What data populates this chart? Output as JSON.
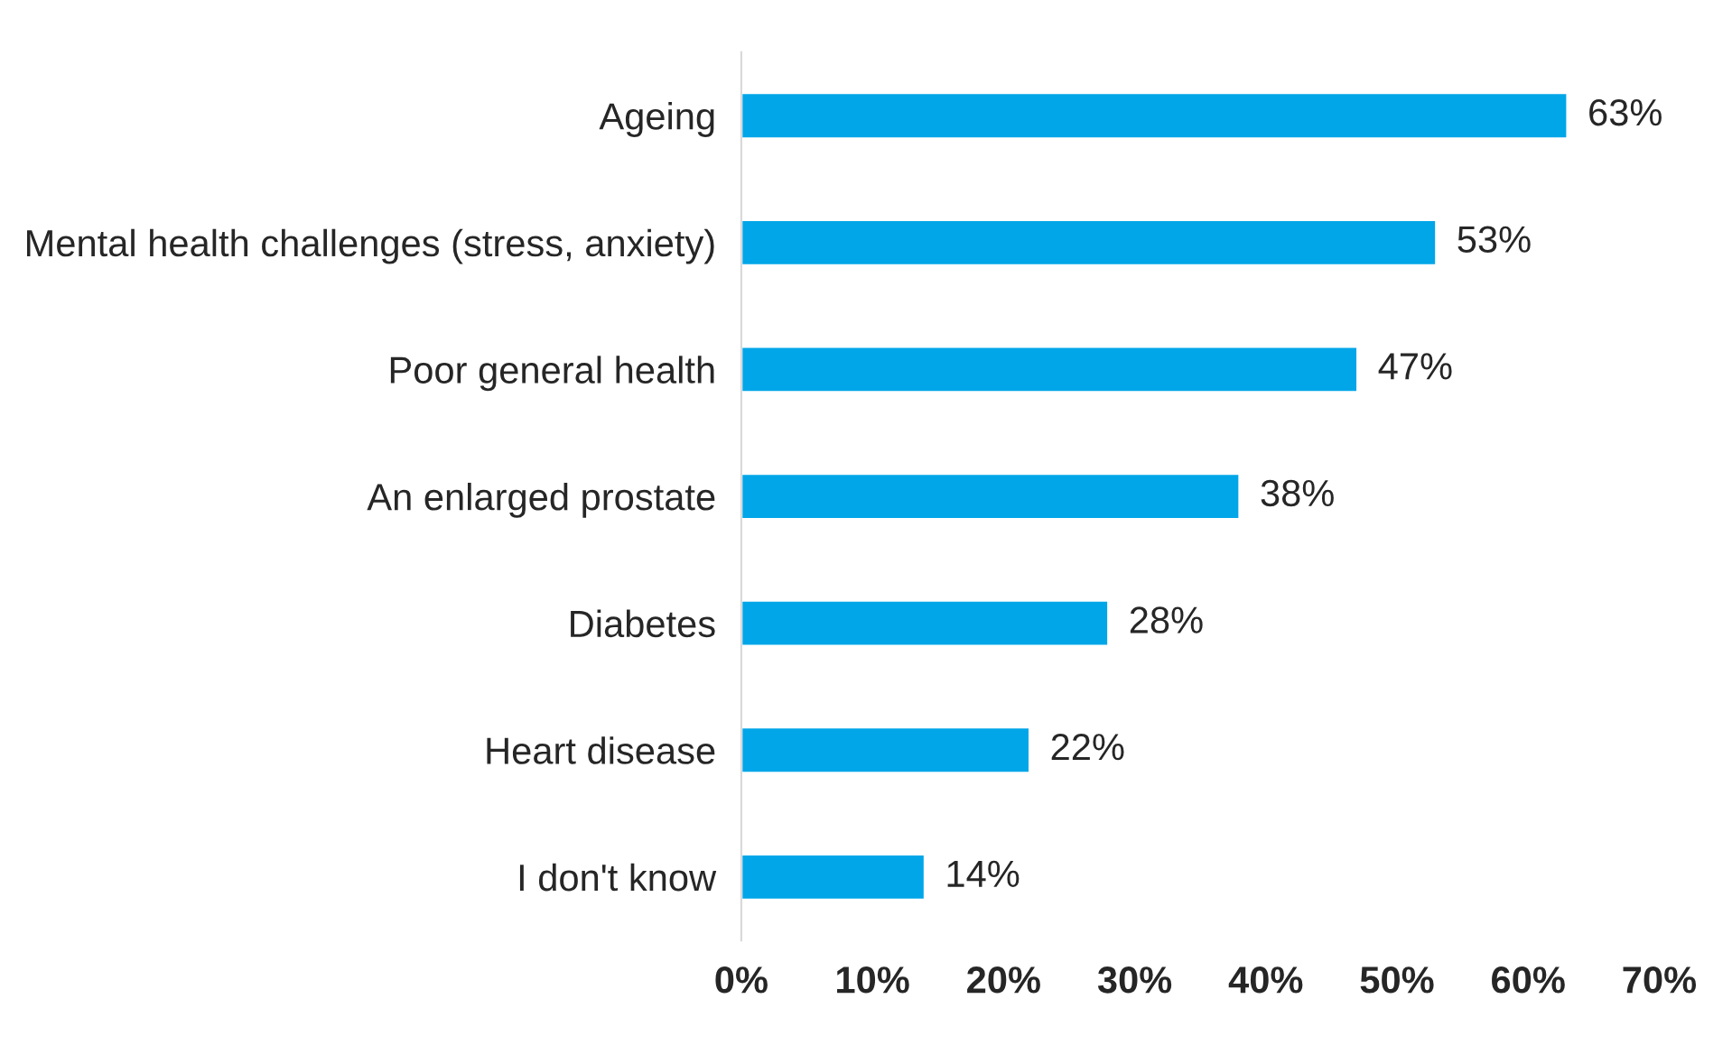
{
  "chart_data": {
    "type": "bar",
    "orientation": "horizontal",
    "categories": [
      "Ageing",
      "Mental health challenges (stress, anxiety)",
      "Poor general health",
      "An enlarged prostate",
      "Diabetes",
      "Heart disease",
      "I don't know"
    ],
    "values": [
      63,
      53,
      47,
      38,
      28,
      22,
      14
    ],
    "value_labels": [
      "63%",
      "53%",
      "47%",
      "38%",
      "28%",
      "22%",
      "14%"
    ],
    "color": "#00a6e8",
    "xlim": [
      0,
      70
    ],
    "xticks": [
      {
        "value": 0,
        "label": "0%"
      },
      {
        "value": 10,
        "label": "10%"
      },
      {
        "value": 20,
        "label": "20%"
      },
      {
        "value": 30,
        "label": "30%"
      },
      {
        "value": 40,
        "label": "40%"
      },
      {
        "value": 50,
        "label": "50%"
      },
      {
        "value": 60,
        "label": "60%"
      },
      {
        "value": 70,
        "label": "70%"
      }
    ],
    "grid": false,
    "legend": false
  }
}
